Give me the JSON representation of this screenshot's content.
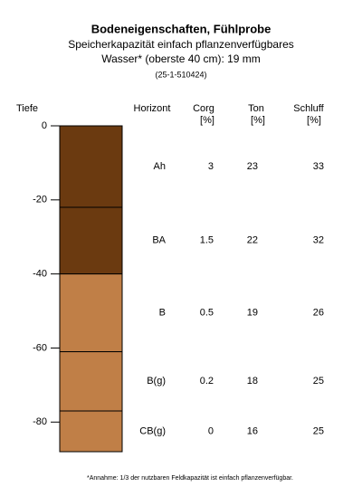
{
  "chart_data": {
    "type": "soil-profile",
    "title": "Bodeneigenschaften, Fühlprobe",
    "subtitle": [
      "Speicherkapazität einfach pflanzenverfügbares",
      "Wasser* (oberste 40 cm): 19 mm",
      "(25-1-510424)"
    ],
    "footnote": "*Annahme: 1/3 der nutzbaren Feldkapazität ist einfach pflanzenverfügbar.",
    "y_label": "Tiefe",
    "ylim": [
      0,
      -88
    ],
    "yticks": [
      0,
      -20,
      -40,
      -60,
      -80
    ],
    "columns": [
      {
        "name": "Horizont"
      },
      {
        "name": "Corg",
        "unit": "[%]"
      },
      {
        "name": "Ton",
        "unit": "[%]"
      },
      {
        "name": "Schluff",
        "unit": "[%]"
      }
    ],
    "layers": [
      {
        "top": 0,
        "bottom": -22,
        "color": "#6b3a10",
        "horizon": "Ah",
        "corg": 3,
        "ton": 23,
        "schluff": 33
      },
      {
        "top": -22,
        "bottom": -40,
        "color": "#6b3a10",
        "horizon": "BA",
        "corg": 1.5,
        "ton": 22,
        "schluff": 32
      },
      {
        "top": -40,
        "bottom": -61,
        "color": "#c07f47",
        "horizon": "B",
        "corg": 0.5,
        "ton": 19,
        "schluff": 26
      },
      {
        "top": -61,
        "bottom": -77,
        "color": "#c07f47",
        "horizon": "B(g)",
        "corg": 0.2,
        "ton": 18,
        "schluff": 25
      },
      {
        "top": -77,
        "bottom": -88,
        "color": "#c07f47",
        "horizon": "CB(g)",
        "corg": 0,
        "ton": 16,
        "schluff": 25
      }
    ]
  }
}
